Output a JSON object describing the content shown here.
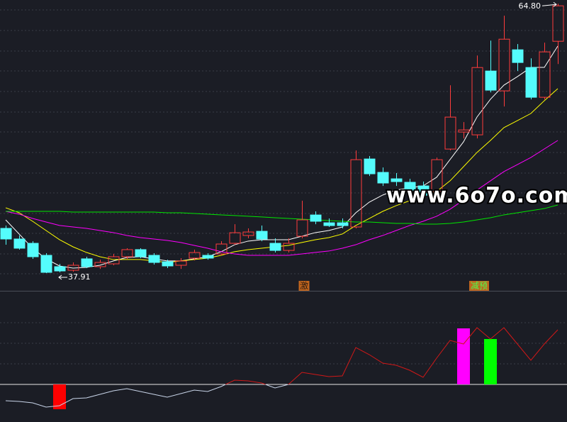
{
  "chart_data": [
    {
      "type": "candlestick",
      "x": [
        1,
        2,
        3,
        4,
        5,
        6,
        7,
        8,
        9,
        10,
        11,
        12,
        13,
        14,
        15,
        16,
        17,
        18,
        19,
        20,
        21,
        22,
        23,
        24,
        25,
        26,
        27,
        28,
        29,
        30,
        31,
        32,
        33,
        34,
        35,
        36,
        37,
        38,
        39,
        40,
        41,
        42
      ],
      "open": [
        42.37,
        41.31,
        40.88,
        39.68,
        38.55,
        38.19,
        39.33,
        38.55,
        38.83,
        39.54,
        40.25,
        39.68,
        39.04,
        38.69,
        39.4,
        39.68,
        39.82,
        40.88,
        41.66,
        42.08,
        40.88,
        40.17,
        41.59,
        43.71,
        42.93,
        42.93,
        42.51,
        49.3,
        47.96,
        47.32,
        46.97,
        46.61,
        46.05,
        50.29,
        51.99,
        51.71,
        58.08,
        56.1,
        60.2,
        58.43,
        55.46,
        61.05
      ],
      "high": [
        42.65,
        41.66,
        41.09,
        39.89,
        38.83,
        38.97,
        39.54,
        39.25,
        39.82,
        40.39,
        40.39,
        39.89,
        39.25,
        39.4,
        40.25,
        39.89,
        41.09,
        42.79,
        42.37,
        42.65,
        41.38,
        41.38,
        45.13,
        44.07,
        43.36,
        43.36,
        50.15,
        49.59,
        48.45,
        47.89,
        47.32,
        47.04,
        49.44,
        56.66,
        52.98,
        59.63,
        61.12,
        63.6,
        60.77,
        59.35,
        60.91,
        64.8
      ],
      "low": [
        40.74,
        40.25,
        39.33,
        37.91,
        37.98,
        38.05,
        38.41,
        38.33,
        38.69,
        39.33,
        39.4,
        38.76,
        38.41,
        38.33,
        39.18,
        39.25,
        39.68,
        40.74,
        41.38,
        41.09,
        39.96,
        39.96,
        41.38,
        42.79,
        42.51,
        42.37,
        42.37,
        47.6,
        46.61,
        46.61,
        45.69,
        45.34,
        45.91,
        50.15,
        51.35,
        51.35,
        55.95,
        54.54,
        58.08,
        55.25,
        55.25,
        58.78
      ],
      "close": [
        41.31,
        40.39,
        39.54,
        37.98,
        38.12,
        38.69,
        38.55,
        38.97,
        39.54,
        40.25,
        39.54,
        38.97,
        38.62,
        39.11,
        39.96,
        39.4,
        40.81,
        41.94,
        42.01,
        41.31,
        40.17,
        40.88,
        43.22,
        43.08,
        42.65,
        42.65,
        49.23,
        47.82,
        46.9,
        47.04,
        46.19,
        45.69,
        49.23,
        53.48,
        52.2,
        58.43,
        56.17,
        61.26,
        58.93,
        55.46,
        59.99,
        64.59
      ],
      "up_color": "#ff3c3c",
      "down_color": "#54fcfc",
      "lines": [
        {
          "color": "#ffffff",
          "values": [
            43.22,
            41.81,
            40.39,
            39.33,
            38.62,
            38.41,
            38.48,
            38.69,
            39.12,
            39.47,
            39.54,
            39.33,
            39.12,
            39.12,
            39.33,
            39.54,
            40.04,
            40.74,
            41.1,
            41.24,
            41.24,
            41.24,
            41.59,
            41.95,
            42.16,
            42.51,
            43.93,
            44.99,
            45.7,
            46.2,
            46.41,
            46.62,
            47.47,
            49.24,
            51.01,
            53.49,
            55.26,
            56.67,
            57.52,
            58.44,
            58.44,
            60.57
          ]
        },
        {
          "color": "#ffff00",
          "values": [
            44.43,
            43.93,
            43.08,
            42.16,
            41.24,
            40.53,
            39.97,
            39.54,
            39.26,
            39.26,
            39.26,
            39.12,
            38.97,
            39.12,
            39.26,
            39.4,
            39.68,
            40.04,
            40.25,
            40.39,
            40.53,
            40.67,
            40.96,
            41.24,
            41.45,
            41.81,
            42.66,
            43.36,
            44.07,
            44.64,
            45.13,
            45.7,
            46.05,
            47.12,
            48.53,
            49.95,
            51.15,
            52.43,
            53.13,
            53.84,
            55.12,
            56.32
          ]
        },
        {
          "color": "#ff00ff",
          "values": [
            44.07,
            43.79,
            43.36,
            43.01,
            42.66,
            42.51,
            42.37,
            42.16,
            41.95,
            41.66,
            41.45,
            41.31,
            41.17,
            40.96,
            40.67,
            40.39,
            40.04,
            39.82,
            39.68,
            39.68,
            39.68,
            39.68,
            39.82,
            39.97,
            40.11,
            40.39,
            40.74,
            41.24,
            41.66,
            42.16,
            42.66,
            43.08,
            43.58,
            44.28,
            45.2,
            46.2,
            47.12,
            48.04,
            48.74,
            49.45,
            50.3,
            51.15
          ]
        },
        {
          "color": "#00e600",
          "values": [
            44.07,
            44.07,
            44.07,
            44.07,
            44.07,
            44.0,
            44.0,
            44.0,
            44.0,
            44.0,
            44.0,
            44.0,
            43.93,
            43.93,
            43.86,
            43.79,
            43.72,
            43.65,
            43.58,
            43.51,
            43.43,
            43.36,
            43.29,
            43.22,
            43.15,
            43.08,
            43.01,
            43.01,
            42.94,
            42.87,
            42.87,
            42.8,
            42.8,
            42.87,
            43.01,
            43.22,
            43.43,
            43.72,
            43.93,
            44.14,
            44.35,
            44.71
          ]
        }
      ],
      "ylim": [
        36.14,
        65.17
      ],
      "max_label": "64.80",
      "min_label": "37.91",
      "annotations": [
        {
          "text": "激",
          "x": 23
        },
        {
          "text": "减预",
          "x": 36
        }
      ],
      "watermark": "www.6o7o.com"
    },
    {
      "type": "line",
      "x": [
        1,
        2,
        3,
        4,
        5,
        6,
        7,
        8,
        9,
        10,
        11,
        12,
        13,
        14,
        15,
        16,
        17,
        18,
        19,
        20,
        21,
        22,
        23,
        24,
        25,
        26,
        27,
        28,
        29,
        30,
        31,
        32,
        33,
        34,
        35,
        36,
        37,
        38,
        39,
        40,
        41,
        42
      ],
      "values": [
        -2.3,
        -2.4,
        -2.6,
        -3.2,
        -3.0,
        -2.0,
        -1.9,
        -1.4,
        -0.9,
        -0.6,
        -1.0,
        -1.4,
        -1.8,
        -1.3,
        -0.8,
        -1.0,
        -0.3,
        0.6,
        0.5,
        0.2,
        -0.5,
        0,
        1.7,
        1.4,
        1.1,
        1.2,
        5.2,
        4.2,
        3.0,
        2.7,
        2.0,
        1.0,
        3.7,
        6.2,
        5.7,
        8.0,
        6.4,
        8.0,
        5.7,
        3.4,
        5.7,
        7.7
      ],
      "above_color": "#d01818",
      "below_color": "#c8d4e8",
      "bars": {
        "x": [
          5,
          35,
          37
        ],
        "values": [
          -3.5,
          7.9,
          6.4
        ],
        "colors": [
          "#ff0000",
          "#ff00ff",
          "#00ff00"
        ]
      },
      "ylim": [
        -5.3,
        13.2
      ]
    }
  ]
}
